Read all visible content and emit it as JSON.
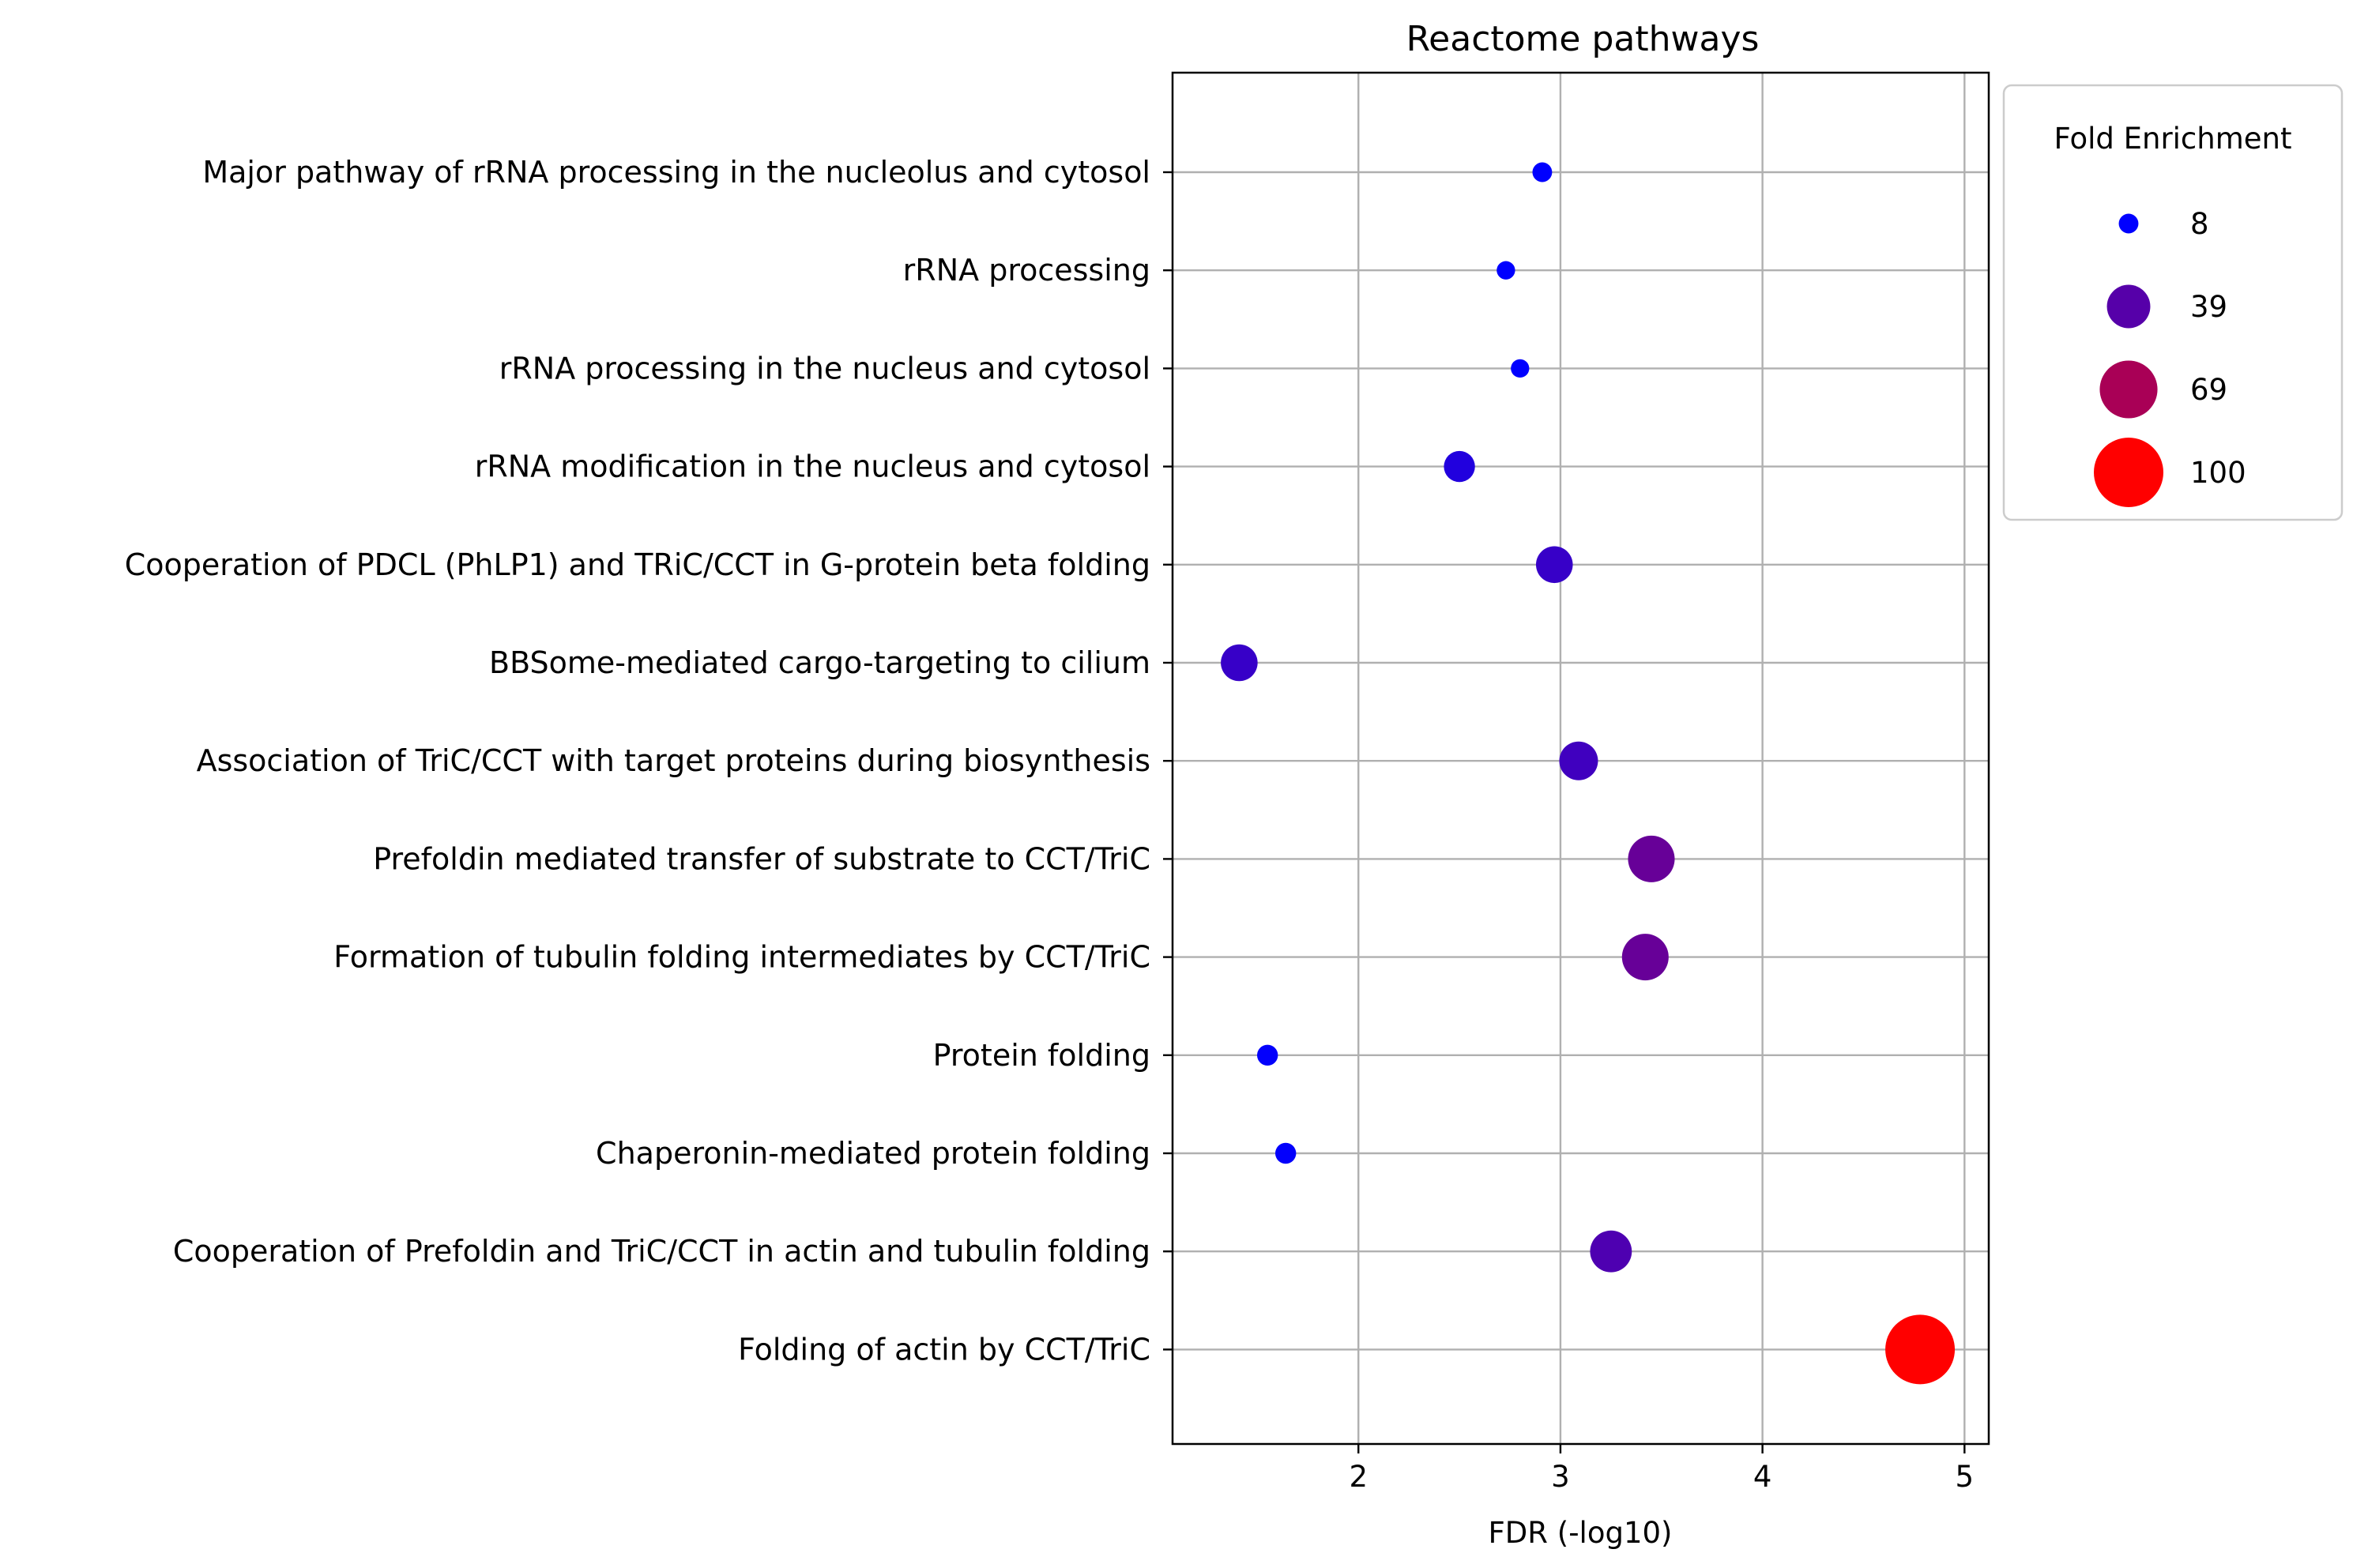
{
  "chart_data": {
    "type": "scatter",
    "title": "Reactome pathways",
    "xlabel": "FDR (-log10)",
    "ylabel": "",
    "xlim": [
      1.08,
      5.12
    ],
    "xticks": [
      2,
      3,
      4,
      5
    ],
    "grid": true,
    "legend": {
      "title": "Fold Enrichment",
      "placement": "outside-right",
      "entries": [
        {
          "label": "8",
          "value": 8
        },
        {
          "label": "39",
          "value": 39
        },
        {
          "label": "69",
          "value": 69
        },
        {
          "label": "100",
          "value": 100
        }
      ]
    },
    "color_scale": {
      "low": "#0000ff",
      "high": "#ff0000",
      "min": 8,
      "max": 100
    },
    "categories": [
      "Major pathway of rRNA processing in the nucleolus and cytosol",
      "rRNA processing",
      "rRNA processing in the nucleus and cytosol",
      "rRNA modification in the nucleus and cytosol",
      "Cooperation of PDCL (PhLP1) and TRiC/CCT in G-protein beta folding",
      "BBSome-mediated cargo-targeting to cilium",
      "Association of TriC/CCT with target proteins during biosynthesis",
      "Prefoldin mediated transfer of substrate to CCT/TriC",
      "Formation of tubulin folding intermediates by CCT/TriC",
      "Protein folding",
      "Chaperonin-mediated protein folding",
      "Cooperation of Prefoldin and TriC/CCT in actin and tubulin folding",
      "Folding of actin by CCT/TriC"
    ],
    "points": [
      {
        "category": "Major pathway of rRNA processing in the nucleolus and cytosol",
        "fdr": 2.91,
        "fold_enrichment": 8
      },
      {
        "category": "rRNA processing",
        "fdr": 2.73,
        "fold_enrichment": 7
      },
      {
        "category": "rRNA processing in the nucleus and cytosol",
        "fdr": 2.8,
        "fold_enrichment": 7
      },
      {
        "category": "rRNA modification in the nucleus and cytosol",
        "fdr": 2.5,
        "fold_enrichment": 20
      },
      {
        "category": "Cooperation of PDCL (PhLP1) and TRiC/CCT in G-protein beta folding",
        "fdr": 2.97,
        "fold_enrichment": 28
      },
      {
        "category": "BBSome-mediated cargo-targeting to cilium",
        "fdr": 1.41,
        "fold_enrichment": 28
      },
      {
        "category": "Association of TriC/CCT with target proteins during biosynthesis",
        "fdr": 3.09,
        "fold_enrichment": 31
      },
      {
        "category": "Prefoldin mediated transfer of substrate to CCT/TriC",
        "fdr": 3.45,
        "fold_enrichment": 45
      },
      {
        "category": "Formation of tubulin folding intermediates by CCT/TriC",
        "fdr": 3.42,
        "fold_enrichment": 45
      },
      {
        "category": "Protein folding",
        "fdr": 1.55,
        "fold_enrichment": 9
      },
      {
        "category": "Chaperonin-mediated protein folding",
        "fdr": 1.64,
        "fold_enrichment": 9
      },
      {
        "category": "Cooperation of Prefoldin and TriC/CCT in actin and tubulin folding",
        "fdr": 3.25,
        "fold_enrichment": 36
      },
      {
        "category": "Folding of actin by CCT/TriC",
        "fdr": 4.78,
        "fold_enrichment": 100
      }
    ]
  }
}
